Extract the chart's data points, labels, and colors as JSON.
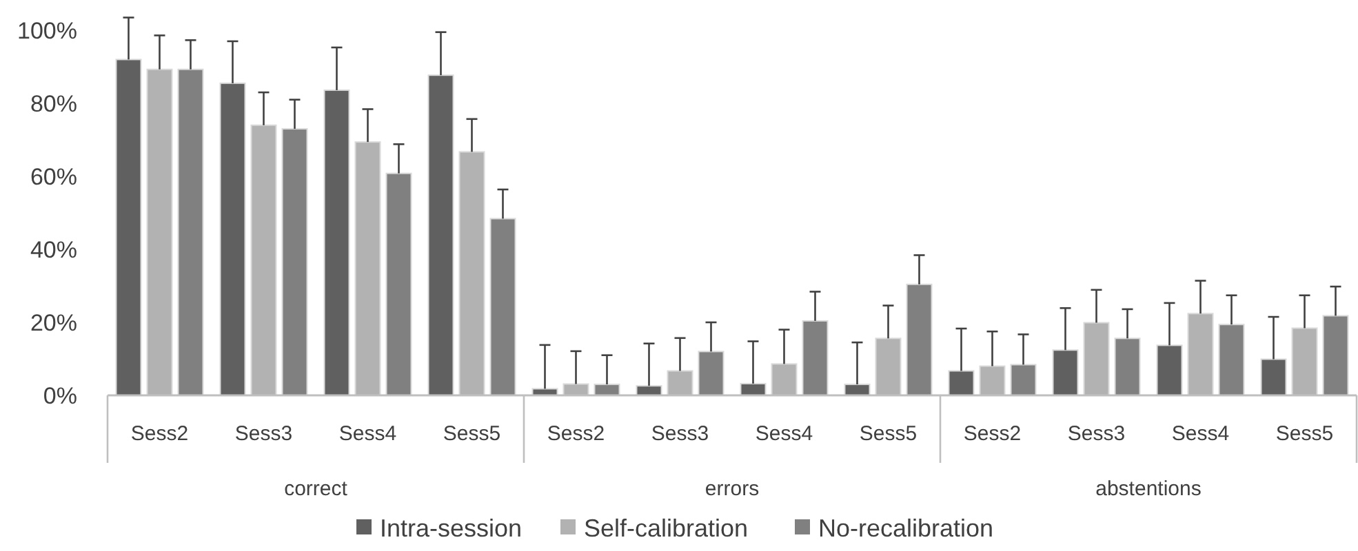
{
  "chart_data": {
    "type": "bar",
    "categories": [
      "Sess2",
      "Sess3",
      "Sess4",
      "Sess5",
      "Sess2",
      "Sess3",
      "Sess4",
      "Sess5",
      "Sess2",
      "Sess3",
      "Sess4",
      "Sess5"
    ],
    "series": [
      {
        "name": "Intra-session",
        "color": "#606060",
        "values": [
          92,
          85.5,
          83.6,
          87.7,
          1.8,
          2.6,
          3.2,
          3,
          6.7,
          12.4,
          13.7,
          9.9
        ],
        "errors": [
          [
            92,
            103.5
          ],
          [
            85.5,
            97
          ],
          [
            83.6,
            95.3
          ],
          [
            87.7,
            99.5
          ],
          [
            1.8,
            13.8
          ],
          [
            2.6,
            14.2
          ],
          [
            3.2,
            14.8
          ],
          [
            3,
            14.5
          ],
          [
            6.7,
            18.3
          ],
          [
            12.4,
            23.9
          ],
          [
            13.7,
            25.3
          ],
          [
            9.9,
            21.5
          ]
        ]
      },
      {
        "name": "Self-calibration",
        "color": "#b2b2b2",
        "values": [
          89.3,
          74,
          69.4,
          66.7,
          3.1,
          6.7,
          8.6,
          15.6,
          8,
          19.9,
          22.4,
          18.4
        ],
        "errors": [
          [
            89.3,
            98.6
          ],
          [
            74,
            83
          ],
          [
            69.4,
            78.4
          ],
          [
            66.7,
            75.7
          ],
          [
            3.1,
            12.1
          ],
          [
            6.7,
            15.7
          ],
          [
            8.6,
            18
          ],
          [
            15.6,
            24.6
          ],
          [
            8,
            17.5
          ],
          [
            19.9,
            28.9
          ],
          [
            22.4,
            31.4
          ],
          [
            18.4,
            27.4
          ]
        ]
      },
      {
        "name": "No-recalibration",
        "color": "#808080",
        "values": [
          89.3,
          73,
          60.8,
          48.4,
          3,
          12,
          20.4,
          30.4,
          8.4,
          15.6,
          19.4,
          21.8
        ],
        "errors": [
          [
            89.3,
            97.3
          ],
          [
            73,
            81
          ],
          [
            60.8,
            68.8
          ],
          [
            48.4,
            56.4
          ],
          [
            3,
            11
          ],
          [
            12,
            20
          ],
          [
            20.4,
            28.4
          ],
          [
            30.4,
            38.4
          ],
          [
            8.4,
            16.7
          ],
          [
            15.6,
            23.6
          ],
          [
            19.4,
            27.4
          ],
          [
            21.8,
            29.8
          ]
        ]
      }
    ],
    "annotations": [
      "correct",
      "errors",
      "abstentions"
    ],
    "ylim": [
      0,
      100
    ],
    "yticks": [
      {
        "value": 0,
        "label": "0%"
      },
      {
        "value": 20,
        "label": "20%"
      },
      {
        "value": 40,
        "label": "40%"
      },
      {
        "value": 60,
        "label": "60%"
      },
      {
        "value": 80,
        "label": "80%"
      },
      {
        "value": 100,
        "label": "100%"
      }
    ],
    "grid": false,
    "legend": "bottom"
  }
}
